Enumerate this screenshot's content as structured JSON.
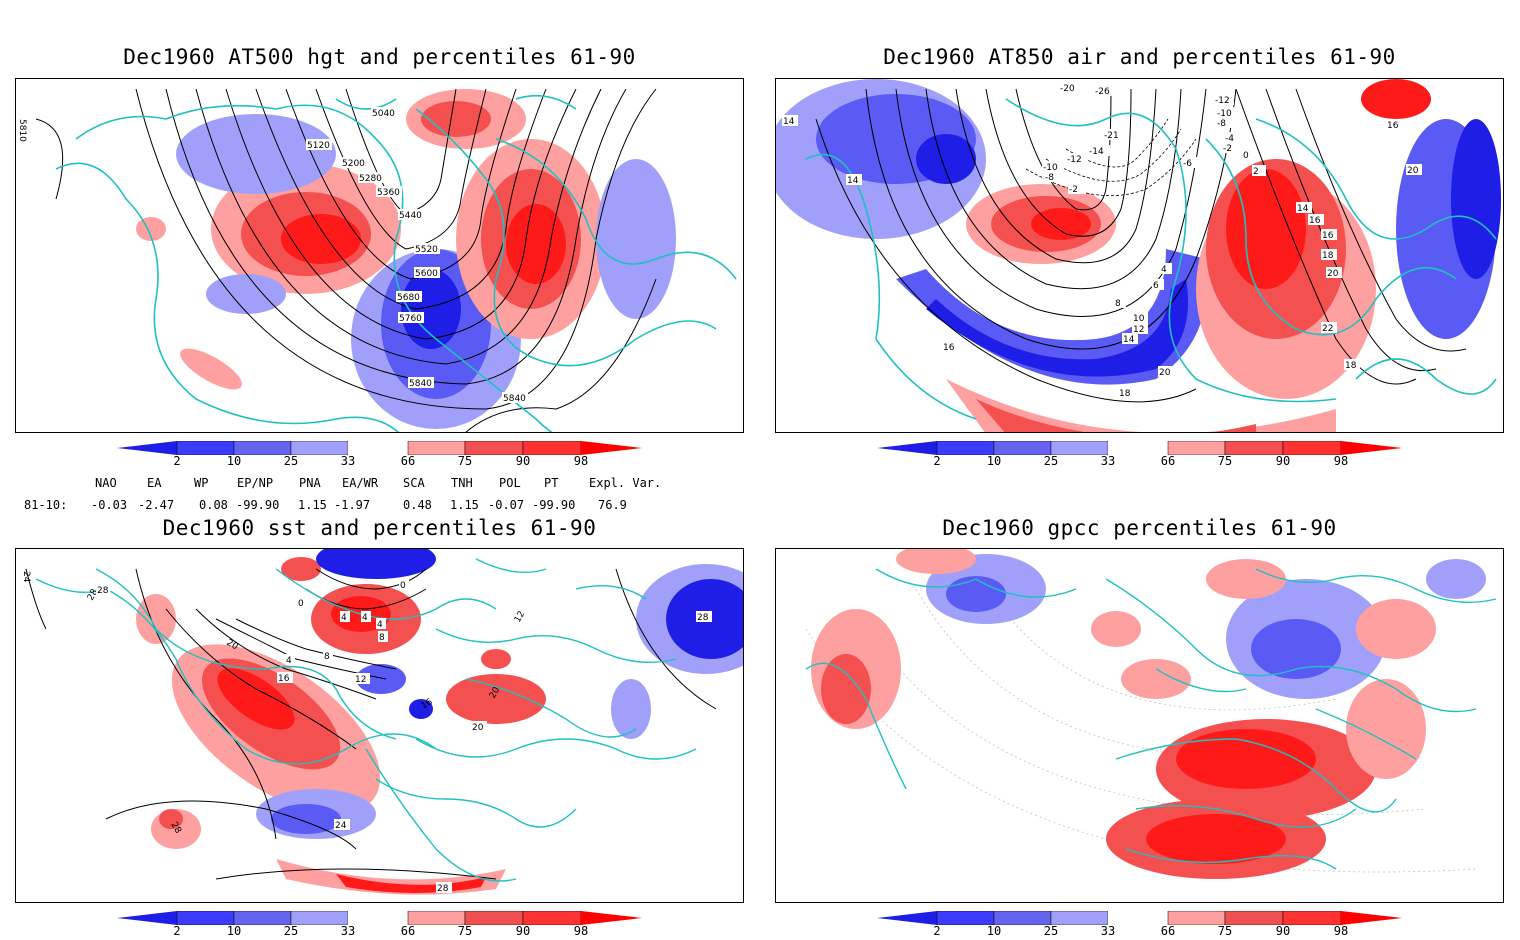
{
  "panels": {
    "p1": {
      "title": "Dec1960 AT500 hgt and percentiles 61-90",
      "contour_labels": [
        "5040",
        "5120",
        "5200",
        "5280",
        "5360",
        "5440",
        "5520",
        "5600",
        "5680",
        "5760",
        "5840",
        "5840",
        "5810"
      ]
    },
    "p2": {
      "title": "Dec1960 AT850 air and percentiles 61-90",
      "contour_labels": [
        "-20",
        "-26",
        "-12",
        "-10",
        "-8",
        "-4",
        "-2",
        "0",
        "2",
        "-6",
        "-14",
        "-12",
        "-10",
        "-8",
        "-2",
        "-21",
        "14",
        "16",
        "16",
        "18",
        "20",
        "22",
        "20",
        "14",
        "16",
        "4",
        "6",
        "8",
        "10",
        "12",
        "14",
        "20",
        "18",
        "16",
        "18",
        "16",
        "14"
      ]
    },
    "p3": {
      "title": "Dec1960 sst and percentiles 61-90",
      "contour_labels": [
        "24",
        "28",
        "28",
        "0",
        "4",
        "4",
        "4",
        "8",
        "0",
        "12",
        "20",
        "16",
        "4",
        "8",
        "12",
        "16",
        "20",
        "20",
        "24",
        "28",
        "28",
        "28"
      ]
    },
    "p4": {
      "title": "Dec1960 gpcc percentiles 61-90"
    }
  },
  "colorbar": {
    "ticks": [
      "2",
      "10",
      "25",
      "33",
      "66",
      "75",
      "90",
      "98"
    ],
    "colors": [
      "#1e1ee6",
      "#3c3cff",
      "#6464f0",
      "#a0a0fa",
      "#ffffff",
      "#ffa0a0",
      "#f05050",
      "#ff3232",
      "#ff0000"
    ]
  },
  "indices": {
    "headers": [
      "NAO",
      "EA",
      "WP",
      "EP/NP",
      "PNA",
      "EA/WR",
      "SCA",
      "TNH",
      "POL",
      "PT",
      "Expl. Var."
    ],
    "row_label": "81-10:",
    "values": [
      "-0.03",
      "-2.47",
      "0.08",
      "-99.90",
      "1.15",
      "-1.97",
      "0.48",
      "1.15",
      "-0.07",
      "-99.90",
      "76.9"
    ]
  },
  "map_colors": {
    "coast": "#20c0c0",
    "deep_blue": "#1e1ee6",
    "mid_blue": "#5a5af5",
    "light_blue": "#a0a0fa",
    "light_red": "#ffa0a0",
    "mid_red": "#f55050",
    "deep_red": "#ff1a1a"
  }
}
